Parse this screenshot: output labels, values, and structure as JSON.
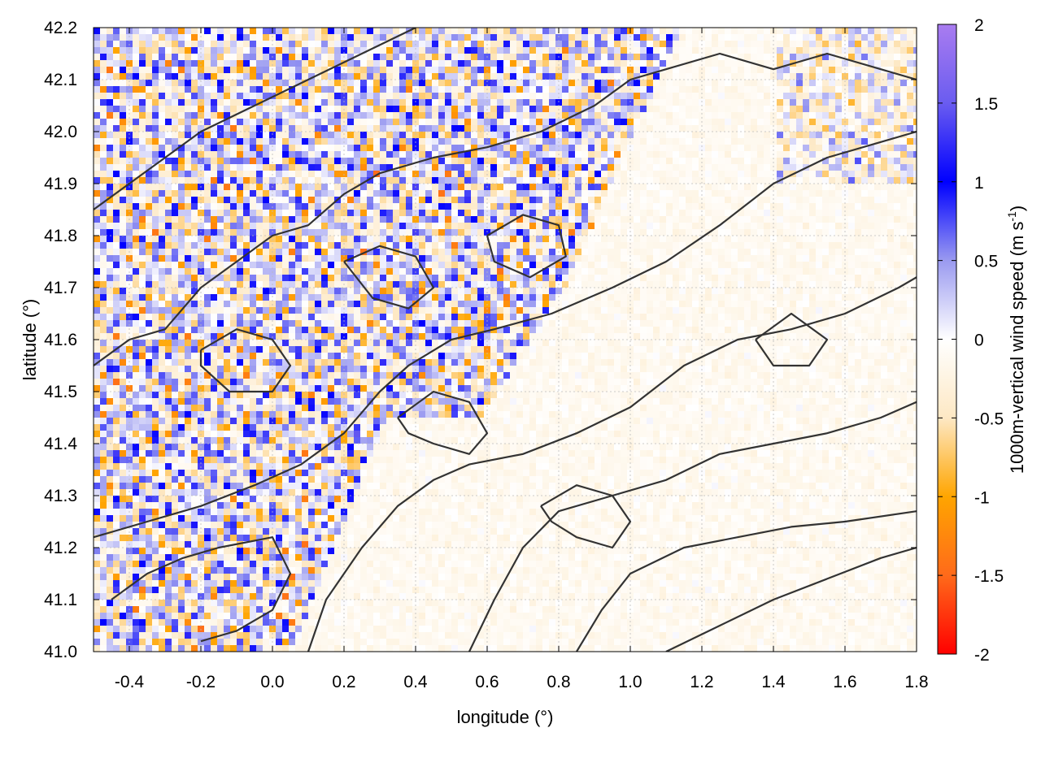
{
  "chart_data": {
    "type": "heatmap",
    "title": "",
    "xlabel": "longitude (°)",
    "ylabel": "latitude (°)",
    "xlim": [
      -0.5,
      1.8
    ],
    "ylim": [
      41.0,
      42.2
    ],
    "x_ticks": [
      -0.4,
      -0.2,
      0.0,
      0.2,
      0.4,
      0.6,
      0.8,
      1.0,
      1.2,
      1.4,
      1.6,
      1.8
    ],
    "x_tick_labels": [
      "-0.4",
      "-0.2",
      "0.0",
      "0.2",
      "0.4",
      "0.6",
      "0.8",
      "1.0",
      "1.2",
      "1.4",
      "1.6",
      "1.8"
    ],
    "y_ticks": [
      41.0,
      41.1,
      41.2,
      41.3,
      41.4,
      41.5,
      41.6,
      41.7,
      41.8,
      41.9,
      42.0,
      42.1,
      42.2
    ],
    "y_tick_labels": [
      "41.0",
      "41.1",
      "41.2",
      "41.3",
      "41.4",
      "41.5",
      "41.6",
      "41.7",
      "41.8",
      "41.9",
      "42.0",
      "42.1",
      "42.2"
    ],
    "grid": true,
    "colorbar": {
      "label_main": "1000m-vertical wind speed (m s",
      "label_sup": "-1",
      "label_end": ")",
      "range": [
        -2,
        2
      ],
      "ticks": [
        2,
        1.5,
        1,
        0.5,
        0,
        -0.5,
        -1,
        -1.5,
        -2
      ],
      "tick_labels": [
        "2",
        "1.5",
        "1",
        "0.5",
        "0",
        "-0.5",
        "-1",
        "-1.5",
        "-2"
      ],
      "colors": {
        "max": "#a97cf0",
        "1.5": "#6a5cf0",
        "1": "#0000ff",
        "0.5": "#9a9af0",
        "0": "#ffffff",
        "-0.5": "#fde8c4",
        "-1": "#ffa500",
        "-1.5": "#ff6a1a",
        "min": "#ff0000"
      }
    },
    "field_description": {
      "turbulent_region": "west and north of the domain (strong alternating up/down drafts)",
      "calm_region": "southeast lowlands and sea (weak values near 0)"
    },
    "contour_color": "#333333"
  }
}
